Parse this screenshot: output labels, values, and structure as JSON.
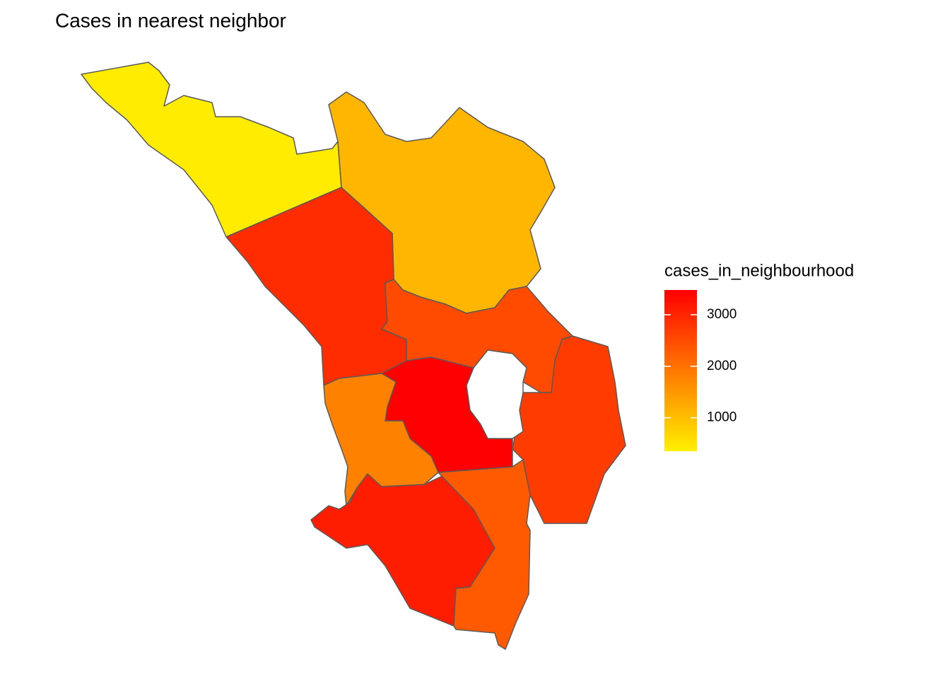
{
  "chart_data": {
    "type": "choropleth",
    "title": "Cases in nearest neighbor",
    "legend_title": "cases_in_neighbourhood",
    "colorlim": [
      350,
      3480
    ],
    "colors": [
      "#FFF000",
      "#FF0000"
    ],
    "ticks": [
      1000,
      2000,
      3000
    ],
    "values": [
      400,
      1100,
      2900,
      2500,
      2700,
      3480,
      1800,
      3100,
      2300
    ]
  }
}
